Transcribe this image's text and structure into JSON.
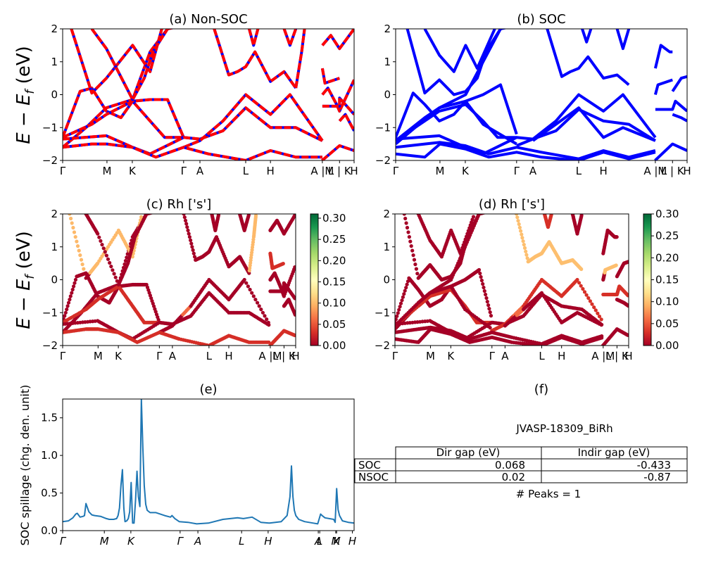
{
  "figure": {
    "material_label": "JVASP-18309_BiRh",
    "peaks_label": "# Peaks = 1"
  },
  "chart_data": [
    {
      "id": "a",
      "type": "line",
      "title": "(a) Non-SOC",
      "ylabel": "E − E_f (eV)",
      "ylim": [
        -2,
        2
      ],
      "yticks": [
        "−2",
        "−1",
        "0",
        "1",
        "2"
      ],
      "ytick_values": [
        -2,
        -1,
        0,
        1,
        2
      ],
      "xlim": [
        0,
        1
      ],
      "xtick_labels": [
        "Γ",
        "M",
        "K",
        "Γ",
        "A",
        "L",
        "H",
        "A |M",
        "L | K",
        "H"
      ],
      "xtick_positions": [
        0,
        0.152,
        0.239,
        0.415,
        0.471,
        0.628,
        0.713,
        0.891,
        0.95,
        1.0
      ],
      "style": "red line dashed over blue",
      "colors": {
        "under": "#0000ff",
        "over": "#ff0000"
      },
      "series": [
        {
          "name": "band1",
          "x": [
            0,
            0.06,
            0.1,
            0.15,
            0.2,
            0.24,
            0.3,
            0.36,
            0.415
          ],
          "y": [
            -1.3,
            0.1,
            0.2,
            -0.5,
            -0.7,
            -0.2,
            -0.15,
            -0.15,
            -1.3
          ]
        },
        {
          "name": "band2",
          "x": [
            0,
            0.08,
            0.15,
            0.24,
            0.3,
            0.36,
            0.415
          ],
          "y": [
            -1.6,
            -1.0,
            -0.4,
            -0.15,
            1.3,
            2.0,
            2.1
          ]
        },
        {
          "name": "band3",
          "x": [
            0,
            0.1,
            0.15,
            0.24,
            0.3,
            0.35,
            0.415
          ],
          "y": [
            -1.3,
            -0.9,
            -0.6,
            -0.2,
            -0.8,
            -1.3,
            -1.3
          ]
        },
        {
          "name": "band4",
          "x": [
            0.03,
            0.1,
            0.15,
            0.24,
            0.3,
            0.34
          ],
          "y": [
            2.0,
            0.05,
            0.5,
            1.5,
            0.7,
            2.0
          ]
        },
        {
          "name": "band5",
          "x": [
            0.1,
            0.15,
            0.24,
            0.28,
            0.31,
            0.36
          ],
          "y": [
            2.0,
            1.4,
            -0.15,
            0.5,
            1.3,
            2.0
          ]
        },
        {
          "name": "band6",
          "x": [
            0,
            0.15,
            0.24,
            0.3,
            0.415,
            0.471,
            0.55,
            0.628,
            0.713,
            0.8,
            0.891
          ],
          "y": [
            -1.35,
            -1.25,
            -1.6,
            -1.8,
            -1.3,
            -1.35,
            -1.1,
            -0.4,
            -1.0,
            -1.0,
            -1.4
          ]
        },
        {
          "name": "band7",
          "x": [
            0.415,
            0.471,
            0.55,
            0.628,
            0.713,
            0.78,
            0.891
          ],
          "y": [
            -1.6,
            -1.4,
            -0.8,
            0.0,
            -0.6,
            0.0,
            -1.4
          ]
        },
        {
          "name": "band8",
          "x": [
            0,
            0.1,
            0.152,
            0.239,
            0.32,
            0.415,
            0.5,
            0.628,
            0.713,
            0.8,
            0.891
          ],
          "y": [
            -1.6,
            -1.5,
            -1.5,
            -1.6,
            -1.9,
            -1.6,
            -1.8,
            -2.0,
            -1.7,
            -1.9,
            -1.9
          ]
        },
        {
          "name": "band9",
          "x": [
            0.52,
            0.57,
            0.6,
            0.628,
            0.66,
            0.713,
            0.76,
            0.8
          ],
          "y": [
            2.0,
            0.6,
            0.7,
            0.85,
            1.3,
            0.4,
            0.7,
            0.2
          ]
        },
        {
          "name": "band10",
          "x": [
            0.64,
            0.655,
            0.67
          ],
          "y": [
            2.0,
            1.5,
            2.0
          ]
        },
        {
          "name": "band11",
          "x": [
            0.76,
            0.78,
            0.8
          ],
          "y": [
            2.0,
            1.5,
            2.0
          ]
        },
        {
          "name": "band12",
          "x": [
            0.8,
            0.82,
            0.83
          ],
          "y": [
            0.2,
            1.3,
            2.0
          ]
        },
        {
          "name": "band13",
          "x": [
            0.891,
            0.9,
            0.95
          ],
          "y": [
            0.8,
            0.35,
            0.5
          ]
        },
        {
          "name": "band14",
          "x": [
            0.891,
            0.92,
            0.95,
            1.0
          ],
          "y": [
            1.5,
            1.8,
            1.4,
            2.0
          ]
        },
        {
          "name": "band15",
          "x": [
            0.891,
            0.91,
            0.94,
            0.95,
            1.0
          ],
          "y": [
            0.0,
            0.2,
            -0.3,
            -0.5,
            0.45
          ]
        },
        {
          "name": "band16",
          "x": [
            0.891,
            0.95,
            0.95,
            1.0
          ],
          "y": [
            -0.35,
            -0.35,
            -0.1,
            -0.6
          ]
        },
        {
          "name": "band17",
          "x": [
            0.95,
            0.97,
            1.0
          ],
          "y": [
            -0.8,
            -0.6,
            -1.1
          ]
        },
        {
          "name": "band18",
          "x": [
            0.89,
            0.95,
            1.0
          ],
          "y": [
            -2.0,
            -1.55,
            -1.7
          ]
        }
      ]
    },
    {
      "id": "b",
      "type": "line",
      "title": "(b) SOC",
      "ylim": [
        -2,
        2
      ],
      "yticks": [
        "−2",
        "−1",
        "0",
        "1",
        "2"
      ],
      "ytick_values": [
        -2,
        -1,
        0,
        1,
        2
      ],
      "xlim": [
        0,
        1
      ],
      "xtick_labels": [
        "Γ",
        "M",
        "K",
        "Γ",
        "A",
        "L",
        "H",
        "A |M",
        "L | K",
        "H"
      ],
      "xtick_positions": [
        0,
        0.152,
        0.239,
        0.415,
        0.471,
        0.628,
        0.713,
        0.891,
        0.95,
        1.0
      ],
      "colors": {
        "line": "#0000ff"
      },
      "series": [
        {
          "name": "band1",
          "x": [
            0,
            0.06,
            0.1,
            0.15,
            0.2,
            0.24,
            0.3,
            0.36,
            0.415
          ],
          "y": [
            -1.3,
            0.05,
            -0.3,
            -0.8,
            -0.6,
            -0.2,
            0.0,
            0.3,
            -1.2
          ]
        },
        {
          "name": "band2",
          "x": [
            0,
            0.08,
            0.15,
            0.24,
            0.3,
            0.36,
            0.415
          ],
          "y": [
            -1.5,
            -0.9,
            -0.4,
            0.0,
            1.0,
            2.0,
            2.1
          ]
        },
        {
          "name": "band3",
          "x": [
            0,
            0.1,
            0.15,
            0.24,
            0.3,
            0.35,
            0.415
          ],
          "y": [
            -1.4,
            -0.8,
            -0.5,
            -0.3,
            -0.8,
            -1.3,
            -1.3
          ]
        },
        {
          "name": "band4",
          "x": [
            0,
            0.1,
            0.15,
            0.24,
            0.3,
            0.415
          ],
          "y": [
            -1.4,
            -0.7,
            -0.4,
            -0.2,
            -0.9,
            -1.5
          ]
        },
        {
          "name": "band5",
          "x": [
            0.04,
            0.1,
            0.15,
            0.2,
            0.24,
            0.28,
            0.31,
            0.36
          ],
          "y": [
            2.0,
            0.05,
            0.45,
            0.0,
            0.1,
            0.5,
            1.3,
            2.0
          ]
        },
        {
          "name": "band6",
          "x": [
            0.1,
            0.15,
            0.2,
            0.24,
            0.28,
            0.34
          ],
          "y": [
            2.0,
            1.2,
            0.7,
            1.5,
            0.8,
            2.0
          ]
        },
        {
          "name": "band7",
          "x": [
            0,
            0.15,
            0.24,
            0.3,
            0.415,
            0.471,
            0.55,
            0.628,
            0.713,
            0.8,
            0.891
          ],
          "y": [
            -1.35,
            -1.25,
            -1.6,
            -1.8,
            -1.3,
            -1.35,
            -1.1,
            -0.45,
            -0.8,
            -0.9,
            -1.4
          ]
        },
        {
          "name": "band8",
          "x": [
            0.415,
            0.471,
            0.55,
            0.628,
            0.713,
            0.78,
            0.891
          ],
          "y": [
            -1.55,
            -1.35,
            -0.8,
            0.0,
            -0.5,
            0.0,
            -1.3
          ]
        },
        {
          "name": "band9",
          "x": [
            0.471,
            0.55,
            0.628,
            0.713,
            0.78,
            0.891
          ],
          "y": [
            -1.4,
            -0.9,
            -0.4,
            -1.3,
            -1.0,
            -1.4
          ]
        },
        {
          "name": "band10",
          "x": [
            0,
            0.1,
            0.152,
            0.239,
            0.32,
            0.415,
            0.5,
            0.628,
            0.713,
            0.8,
            0.891
          ],
          "y": [
            -1.6,
            -1.5,
            -1.45,
            -1.55,
            -1.8,
            -1.6,
            -1.75,
            -1.95,
            -1.7,
            -1.9,
            -1.7
          ]
        },
        {
          "name": "band11",
          "x": [
            0,
            0.1,
            0.152,
            0.239,
            0.32,
            0.415,
            0.5,
            0.628,
            0.713,
            0.8,
            0.891
          ],
          "y": [
            -1.8,
            -1.9,
            -1.5,
            -1.65,
            -1.9,
            -1.75,
            -1.9,
            -2.0,
            -1.75,
            -1.95,
            -1.75
          ]
        },
        {
          "name": "band12",
          "x": [
            0.52,
            0.57,
            0.6,
            0.628,
            0.66,
            0.713,
            0.76,
            0.8
          ],
          "y": [
            2.0,
            0.55,
            0.7,
            0.8,
            1.15,
            0.5,
            0.6,
            0.3
          ]
        },
        {
          "name": "band13",
          "x": [
            0.64,
            0.655,
            0.67
          ],
          "y": [
            2.0,
            1.6,
            2.0
          ]
        },
        {
          "name": "band14",
          "x": [
            0.76,
            0.78,
            0.8
          ],
          "y": [
            2.0,
            1.4,
            2.0
          ]
        },
        {
          "name": "band15",
          "x": [
            0.891,
            0.91,
            0.94,
            0.95
          ],
          "y": [
            0.8,
            1.5,
            1.3,
            1.3
          ]
        },
        {
          "name": "band16",
          "x": [
            0.891,
            0.9,
            0.95
          ],
          "y": [
            0.0,
            0.3,
            0.45
          ]
        },
        {
          "name": "band17",
          "x": [
            0.95,
            0.98,
            1.0
          ],
          "y": [
            0.1,
            0.5,
            0.55
          ]
        },
        {
          "name": "band18",
          "x": [
            0.891,
            0.95,
            0.96,
            1.0
          ],
          "y": [
            -0.45,
            -0.45,
            -0.2,
            -0.5
          ]
        },
        {
          "name": "band19",
          "x": [
            0.95,
            0.98,
            1.0
          ],
          "y": [
            -0.6,
            -0.7,
            -0.8
          ]
        },
        {
          "name": "band20",
          "x": [
            0.89,
            0.95,
            1.0
          ],
          "y": [
            -2.0,
            -1.5,
            -1.7
          ]
        }
      ]
    },
    {
      "id": "c",
      "type": "scatter",
      "title": "(c)  Rh ['s']",
      "ylim": [
        -2,
        2
      ],
      "yticks": [
        "−2",
        "−1",
        "0",
        "1",
        "2"
      ],
      "ytick_values": [
        -2,
        -1,
        0,
        1,
        2
      ],
      "xtick_labels": [
        "Γ",
        "M",
        "K",
        "Γ",
        "A",
        "L",
        "H",
        "A |M",
        "L | K",
        "H"
      ],
      "xtick_positions": [
        0,
        0.152,
        0.239,
        0.415,
        0.471,
        0.628,
        0.713,
        0.891,
        0.95,
        1.0
      ],
      "colorbar": {
        "cmap": "RdYlGn",
        "vmin": 0.0,
        "vmax": 0.31,
        "ticks": [
          "0.00",
          "0.05",
          "0.10",
          "0.15",
          "0.20",
          "0.25",
          "0.30"
        ],
        "tick_values": [
          0,
          0.05,
          0.1,
          0.15,
          0.2,
          0.25,
          0.3
        ]
      },
      "note": "scatter points colored by Rh s-orbital projection weight; follows Non-SOC bands (a)"
    },
    {
      "id": "d",
      "type": "scatter",
      "title": "(d) Rh ['s']",
      "ylim": [
        -2,
        2
      ],
      "yticks": [
        "−2",
        "−1",
        "0",
        "1",
        "2"
      ],
      "ytick_values": [
        -2,
        -1,
        0,
        1,
        2
      ],
      "xtick_labels": [
        "Γ",
        "M",
        "K",
        "Γ",
        "A",
        "L",
        "H",
        "A |M",
        "L | K",
        "H"
      ],
      "xtick_positions": [
        0,
        0.152,
        0.239,
        0.415,
        0.471,
        0.628,
        0.713,
        0.891,
        0.95,
        1.0
      ],
      "colorbar": {
        "cmap": "RdYlGn",
        "vmin": 0.0,
        "vmax": 0.3,
        "ticks": [
          "0.00",
          "0.05",
          "0.10",
          "0.15",
          "0.20",
          "0.25",
          "0.30"
        ],
        "tick_values": [
          0,
          0.05,
          0.1,
          0.15,
          0.2,
          0.25,
          0.3
        ]
      },
      "note": "scatter points colored by Rh s-orbital projection weight; follows SOC bands (b)"
    },
    {
      "id": "e",
      "type": "line",
      "title": "(e)",
      "ylabel": "SOC spillage (chg. den. unit)",
      "ylim": [
        0,
        1.75
      ],
      "yticks": [
        "0.0",
        "0.5",
        "1.0",
        "1.5"
      ],
      "ytick_values": [
        0,
        0.5,
        1.0,
        1.5
      ],
      "xtick_labels": [
        "Γ",
        "M",
        "K",
        "Γ",
        "A",
        "L",
        "H",
        "A",
        "L",
        "M",
        "K",
        "H"
      ],
      "xtick_positions": [
        0,
        0.143,
        0.234,
        0.403,
        0.464,
        0.614,
        0.705,
        0.877,
        0.882,
        0.937,
        0.94,
        0.994
      ],
      "color": "#1f77b4",
      "x": [
        0,
        0.02,
        0.035,
        0.045,
        0.05,
        0.06,
        0.07,
        0.075,
        0.08,
        0.09,
        0.1,
        0.11,
        0.13,
        0.15,
        0.16,
        0.175,
        0.185,
        0.19,
        0.195,
        0.2,
        0.205,
        0.21,
        0.214,
        0.22,
        0.225,
        0.23,
        0.235,
        0.24,
        0.245,
        0.25,
        0.255,
        0.26,
        0.265,
        0.27,
        0.275,
        0.28,
        0.285,
        0.29,
        0.3,
        0.32,
        0.35,
        0.37,
        0.375,
        0.385,
        0.4,
        0.43,
        0.46,
        0.5,
        0.55,
        0.6,
        0.62,
        0.65,
        0.68,
        0.71,
        0.75,
        0.77,
        0.78,
        0.785,
        0.79,
        0.795,
        0.8,
        0.81,
        0.83,
        0.86,
        0.875,
        0.885,
        0.89,
        0.9,
        0.93,
        0.935,
        0.94,
        0.945,
        0.95,
        0.96,
        0.98,
        1.0
      ],
      "y": [
        0.12,
        0.13,
        0.17,
        0.22,
        0.23,
        0.18,
        0.19,
        0.2,
        0.36,
        0.25,
        0.21,
        0.2,
        0.19,
        0.16,
        0.15,
        0.15,
        0.16,
        0.2,
        0.3,
        0.6,
        0.81,
        0.3,
        0.12,
        0.13,
        0.16,
        0.25,
        0.64,
        0.1,
        0.1,
        0.4,
        0.79,
        0.45,
        0.32,
        1.75,
        1.1,
        0.6,
        0.35,
        0.27,
        0.24,
        0.24,
        0.2,
        0.18,
        0.2,
        0.16,
        0.12,
        0.11,
        0.09,
        0.1,
        0.15,
        0.17,
        0.16,
        0.18,
        0.11,
        0.1,
        0.12,
        0.2,
        0.45,
        0.86,
        0.45,
        0.27,
        0.2,
        0.15,
        0.12,
        0.1,
        0.09,
        0.22,
        0.2,
        0.17,
        0.15,
        0.11,
        0.56,
        0.28,
        0.2,
        0.13,
        0.11,
        0.1
      ]
    },
    {
      "id": "f",
      "type": "table",
      "title": "(f)",
      "caption": "JVASP-18309_BiRh",
      "columns": [
        "",
        "Dir gap (eV)",
        "Indir gap (eV)"
      ],
      "rows": [
        {
          "label": "SOC",
          "dir_gap": "0.068",
          "indir_gap": "-0.433"
        },
        {
          "label": "NSOC",
          "dir_gap": "0.02",
          "indir_gap": "-0.87"
        }
      ],
      "footer": "# Peaks = 1"
    }
  ]
}
